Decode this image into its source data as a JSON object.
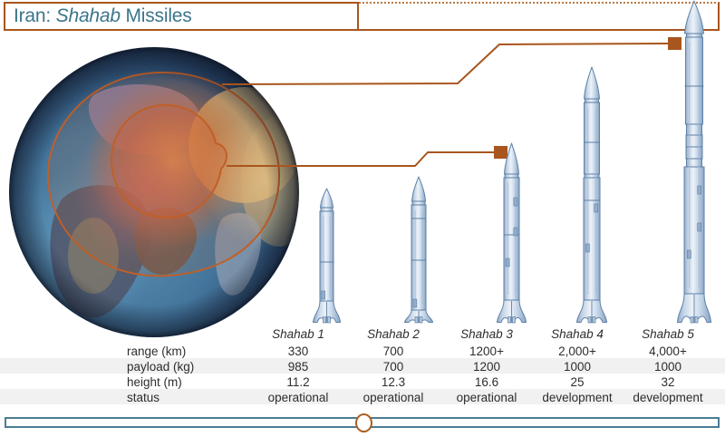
{
  "title": {
    "pre": "Iran: ",
    "italic": "Shahab",
    "post": " Missiles"
  },
  "table": {
    "row_labels": {
      "range": "range (km)",
      "payload": "payload (kg)",
      "height": "height (m)",
      "status": "status"
    },
    "columns": [
      {
        "name": "Shahab 1",
        "range": "330",
        "payload": "985",
        "height": "11.2",
        "status": "operational"
      },
      {
        "name": "Shahab 2",
        "range": "700",
        "payload": "700",
        "height": "12.3",
        "status": "operational"
      },
      {
        "name": "Shahab 3",
        "range": "1200+",
        "payload": "1200",
        "height": "16.6",
        "status": "operational"
      },
      {
        "name": "Shahab 4",
        "range": "2,000+",
        "payload": "1000",
        "height": "25",
        "status": "development"
      },
      {
        "name": "Shahab 5",
        "range": "4,000+",
        "payload": "1000",
        "height": "32",
        "status": "development"
      }
    ]
  },
  "chart_data": {
    "type": "table",
    "title": "Iran: Shahab Missiles",
    "categories": [
      "Shahab 1",
      "Shahab 2",
      "Shahab 3",
      "Shahab 4",
      "Shahab 5"
    ],
    "series": [
      {
        "name": "range (km)",
        "values": [
          "330",
          "700",
          "1200+",
          "2,000+",
          "4,000+"
        ]
      },
      {
        "name": "payload (kg)",
        "values": [
          985,
          700,
          1200,
          1000,
          1000
        ]
      },
      {
        "name": "height (m)",
        "values": [
          11.2,
          12.3,
          16.6,
          25,
          32
        ]
      },
      {
        "name": "status",
        "values": [
          "operational",
          "operational",
          "operational",
          "development",
          "development"
        ]
      }
    ],
    "notes": "globe map shows two concentric range rings centered on Iran; callout lines link inner ring to Shahab 3 and outer ring to Shahab 5"
  },
  "colors": {
    "accent_orange": "#a8551e",
    "title_teal": "#3b758a",
    "slider_teal": "#4a7d93",
    "missile_outline": "#5d80a6",
    "missile_fill": "#cfdded"
  }
}
